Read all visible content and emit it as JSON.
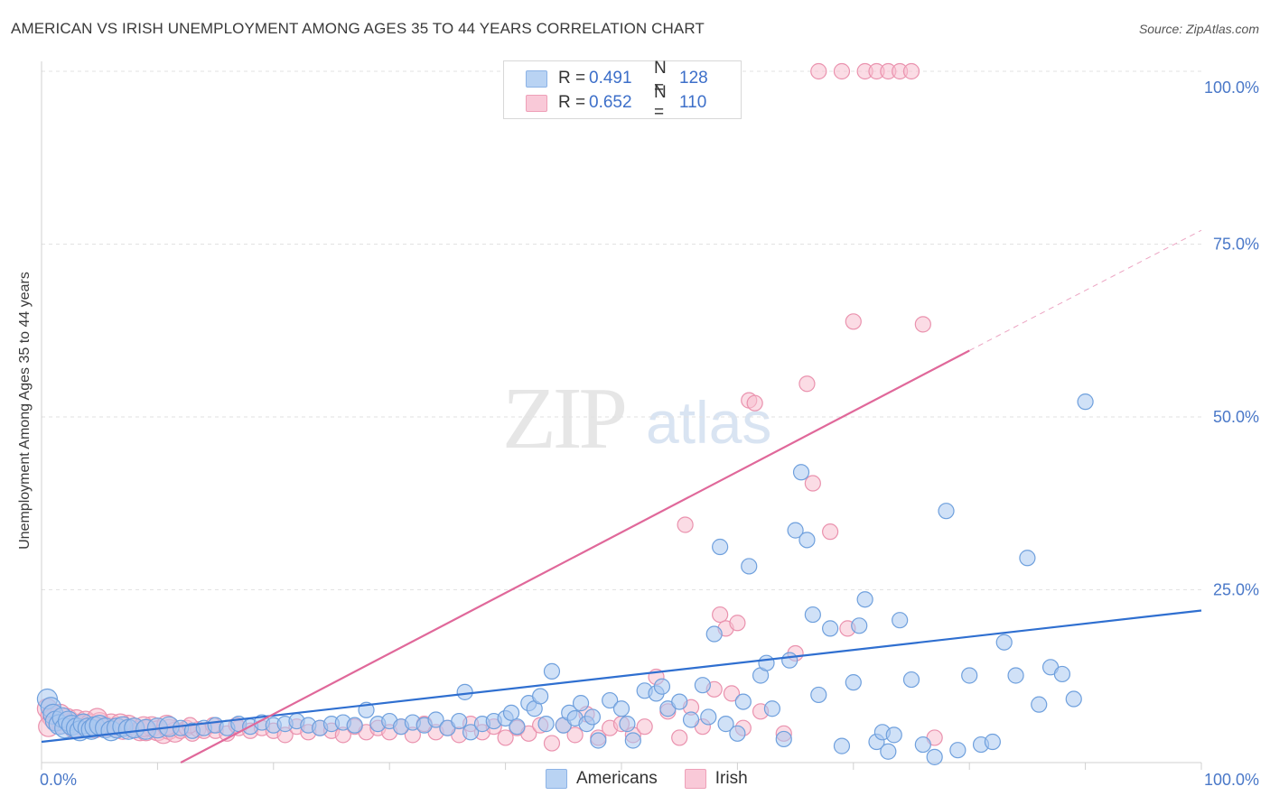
{
  "header": {
    "title": "AMERICAN VS IRISH UNEMPLOYMENT AMONG AGES 35 TO 44 YEARS CORRELATION CHART",
    "source": "Source: ZipAtlas.com"
  },
  "watermark": {
    "zip": "ZIP",
    "atlas": "atlas"
  },
  "legend": {
    "rows": [
      {
        "r_label": "R =",
        "r_value": "0.491",
        "n_label": "N =",
        "n_value": "128"
      },
      {
        "r_label": "R =",
        "r_value": "0.652",
        "n_label": "N =",
        "n_value": "110"
      }
    ]
  },
  "bottom_legend": {
    "americans": "Americans",
    "irish": "Irish"
  },
  "colors": {
    "americans_fill": "#a9c8f0",
    "americans_stroke": "#6fa0dd",
    "americans_line": "#2f6fd0",
    "irish_fill": "#f7bfd0",
    "irish_stroke": "#ea92ae",
    "irish_line": "#e0689a",
    "axis_label": "#4a78c8",
    "grid": "#e2e2e2"
  },
  "chart_data": {
    "type": "scatter",
    "title": "AMERICAN VS IRISH UNEMPLOYMENT AMONG AGES 35 TO 44 YEARS CORRELATION CHART",
    "ylabel": "Unemployment Among Ages 35 to 44 years",
    "xlabel": "",
    "xlim": [
      0,
      100
    ],
    "ylim": [
      0,
      100
    ],
    "x_tick_labels": [
      {
        "value": 0,
        "label": "0.0%"
      },
      {
        "value": 100,
        "label": "100.0%"
      }
    ],
    "y_tick_labels": [
      {
        "value": 25,
        "label": "25.0%"
      },
      {
        "value": 50,
        "label": "50.0%"
      },
      {
        "value": 75,
        "label": "75.0%"
      },
      {
        "value": 100,
        "label": "100.0%"
      }
    ],
    "grid": true,
    "legend_position": "top-center",
    "series": [
      {
        "name": "Americans",
        "R": 0.491,
        "N": 128,
        "trend": {
          "x0": 0,
          "y0": 3.0,
          "x1": 100,
          "y1": 22.0
        },
        "points": [
          [
            0.5,
            9.2
          ],
          [
            0.8,
            8.0
          ],
          [
            1.0,
            7.0
          ],
          [
            1.2,
            6.0
          ],
          [
            1.5,
            5.5
          ],
          [
            1.8,
            6.5
          ],
          [
            2.0,
            5.0
          ],
          [
            2.3,
            6.0
          ],
          [
            2.6,
            5.4
          ],
          [
            3.0,
            5.0
          ],
          [
            3.3,
            4.6
          ],
          [
            3.6,
            5.6
          ],
          [
            4.0,
            5.0
          ],
          [
            4.3,
            4.8
          ],
          [
            4.6,
            5.2
          ],
          [
            5.0,
            5.4
          ],
          [
            5.5,
            5.0
          ],
          [
            6.0,
            4.6
          ],
          [
            6.5,
            5.0
          ],
          [
            7.0,
            5.2
          ],
          [
            7.5,
            4.8
          ],
          [
            8.0,
            5.0
          ],
          [
            9.0,
            4.8
          ],
          [
            10.0,
            5.0
          ],
          [
            11.0,
            5.2
          ],
          [
            12.0,
            5.0
          ],
          [
            13.0,
            4.6
          ],
          [
            14.0,
            5.0
          ],
          [
            15.0,
            5.4
          ],
          [
            16.0,
            5.0
          ],
          [
            17.0,
            5.6
          ],
          [
            18.0,
            5.2
          ],
          [
            19.0,
            5.8
          ],
          [
            20.0,
            5.4
          ],
          [
            21.0,
            5.6
          ],
          [
            22.0,
            6.0
          ],
          [
            23.0,
            5.4
          ],
          [
            24.0,
            5.0
          ],
          [
            25.0,
            5.6
          ],
          [
            26.0,
            5.8
          ],
          [
            27.0,
            5.4
          ],
          [
            28.0,
            7.6
          ],
          [
            29.0,
            5.6
          ],
          [
            30.0,
            6.0
          ],
          [
            31.0,
            5.2
          ],
          [
            32.0,
            5.8
          ],
          [
            33.0,
            5.4
          ],
          [
            34.0,
            6.2
          ],
          [
            35.0,
            5.0
          ],
          [
            36.0,
            6.0
          ],
          [
            36.5,
            10.2
          ],
          [
            37.0,
            4.4
          ],
          [
            38.0,
            5.6
          ],
          [
            39.0,
            6.0
          ],
          [
            40.0,
            6.4
          ],
          [
            40.5,
            7.2
          ],
          [
            41.0,
            5.2
          ],
          [
            42.0,
            8.6
          ],
          [
            42.5,
            7.8
          ],
          [
            43.0,
            9.6
          ],
          [
            43.5,
            5.6
          ],
          [
            44.0,
            13.2
          ],
          [
            45.0,
            5.4
          ],
          [
            45.5,
            7.2
          ],
          [
            46.0,
            6.4
          ],
          [
            46.5,
            8.6
          ],
          [
            47.0,
            5.6
          ],
          [
            47.5,
            6.6
          ],
          [
            48.0,
            3.2
          ],
          [
            49.0,
            9.0
          ],
          [
            50.0,
            7.8
          ],
          [
            50.5,
            5.6
          ],
          [
            51.0,
            3.2
          ],
          [
            52.0,
            10.4
          ],
          [
            53.0,
            10.0
          ],
          [
            53.5,
            11.0
          ],
          [
            54.0,
            7.8
          ],
          [
            55.0,
            8.8
          ],
          [
            56.0,
            6.2
          ],
          [
            57.0,
            11.2
          ],
          [
            57.5,
            6.6
          ],
          [
            58.0,
            18.6
          ],
          [
            58.5,
            31.2
          ],
          [
            59.0,
            5.6
          ],
          [
            60.0,
            4.2
          ],
          [
            60.5,
            8.8
          ],
          [
            61.0,
            28.4
          ],
          [
            62.0,
            12.6
          ],
          [
            62.5,
            14.4
          ],
          [
            63.0,
            7.8
          ],
          [
            64.0,
            3.4
          ],
          [
            64.5,
            14.8
          ],
          [
            65.0,
            33.6
          ],
          [
            65.5,
            42.0
          ],
          [
            66.0,
            32.2
          ],
          [
            66.5,
            21.4
          ],
          [
            67.0,
            9.8
          ],
          [
            68.0,
            19.4
          ],
          [
            69.0,
            2.4
          ],
          [
            70.0,
            11.6
          ],
          [
            70.5,
            19.8
          ],
          [
            71.0,
            23.6
          ],
          [
            72.0,
            3.0
          ],
          [
            72.5,
            4.4
          ],
          [
            73.0,
            1.6
          ],
          [
            73.5,
            4.0
          ],
          [
            74.0,
            20.6
          ],
          [
            75.0,
            12.0
          ],
          [
            76.0,
            2.6
          ],
          [
            77.0,
            0.8
          ],
          [
            78.0,
            36.4
          ],
          [
            79.0,
            1.8
          ],
          [
            80.0,
            12.6
          ],
          [
            81.0,
            2.6
          ],
          [
            82.0,
            3.0
          ],
          [
            83.0,
            17.4
          ],
          [
            84.0,
            12.6
          ],
          [
            85.0,
            29.6
          ],
          [
            86.0,
            8.4
          ],
          [
            87.0,
            13.8
          ],
          [
            88.0,
            12.8
          ],
          [
            89.0,
            9.2
          ],
          [
            90.0,
            52.2
          ]
        ]
      },
      {
        "name": "Irish",
        "R": 0.652,
        "N": 110,
        "trend": {
          "x0": 12.0,
          "y0": 0,
          "x1": 80.0,
          "y1": 59.6
        },
        "trend_dashed_to": {
          "x": 100,
          "y": 77.0
        },
        "points": [
          [
            0.5,
            7.8
          ],
          [
            0.8,
            6.8
          ],
          [
            1.0,
            6.4
          ],
          [
            1.4,
            6.0
          ],
          [
            1.8,
            5.6
          ],
          [
            2.2,
            6.4
          ],
          [
            2.6,
            5.8
          ],
          [
            3.0,
            6.2
          ],
          [
            3.4,
            5.4
          ],
          [
            3.8,
            6.0
          ],
          [
            4.2,
            5.6
          ],
          [
            4.6,
            5.0
          ],
          [
            5.0,
            5.8
          ],
          [
            5.5,
            5.2
          ],
          [
            6.0,
            5.6
          ],
          [
            6.5,
            5.0
          ],
          [
            7.0,
            4.8
          ],
          [
            7.5,
            5.4
          ],
          [
            8.0,
            5.0
          ],
          [
            8.5,
            4.6
          ],
          [
            9.0,
            4.6
          ],
          [
            9.5,
            5.2
          ],
          [
            10.0,
            4.6
          ],
          [
            10.5,
            4.2
          ],
          [
            11.0,
            4.8
          ],
          [
            11.5,
            4.4
          ],
          [
            12.0,
            4.6
          ],
          [
            12.5,
            5.0
          ],
          [
            13.0,
            4.2
          ],
          [
            13.5,
            4.8
          ],
          [
            14.0,
            4.6
          ],
          [
            15.0,
            4.6
          ],
          [
            16.0,
            4.2
          ],
          [
            17.0,
            5.0
          ],
          [
            18.0,
            4.6
          ],
          [
            19.0,
            5.0
          ],
          [
            20.0,
            4.6
          ],
          [
            21.0,
            4.0
          ],
          [
            22.0,
            5.2
          ],
          [
            23.0,
            4.4
          ],
          [
            24.0,
            5.0
          ],
          [
            25.0,
            4.6
          ],
          [
            26.0,
            4.0
          ],
          [
            27.0,
            5.2
          ],
          [
            28.0,
            4.4
          ],
          [
            29.0,
            5.0
          ],
          [
            30.0,
            4.4
          ],
          [
            31.0,
            5.2
          ],
          [
            32.0,
            4.0
          ],
          [
            33.0,
            5.6
          ],
          [
            34.0,
            4.4
          ],
          [
            35.0,
            5.0
          ],
          [
            36.0,
            4.0
          ],
          [
            37.0,
            5.6
          ],
          [
            38.0,
            4.4
          ],
          [
            39.0,
            5.2
          ],
          [
            40.0,
            3.6
          ],
          [
            41.0,
            5.0
          ],
          [
            42.0,
            4.2
          ],
          [
            43.0,
            5.4
          ],
          [
            44.0,
            2.8
          ],
          [
            45.0,
            5.4
          ],
          [
            46.0,
            4.0
          ],
          [
            47.0,
            7.0
          ],
          [
            48.0,
            3.6
          ],
          [
            49.0,
            5.0
          ],
          [
            50.0,
            5.6
          ],
          [
            51.0,
            4.0
          ],
          [
            52.0,
            5.2
          ],
          [
            53.0,
            12.4
          ],
          [
            54.0,
            7.4
          ],
          [
            55.0,
            3.6
          ],
          [
            55.5,
            34.4
          ],
          [
            56.0,
            8.0
          ],
          [
            57.0,
            5.2
          ],
          [
            58.0,
            10.6
          ],
          [
            58.5,
            21.4
          ],
          [
            59.0,
            19.4
          ],
          [
            59.5,
            10.0
          ],
          [
            60.0,
            20.2
          ],
          [
            60.5,
            5.0
          ],
          [
            61.0,
            52.4
          ],
          [
            61.5,
            52.0
          ],
          [
            62.0,
            7.4
          ],
          [
            64.0,
            4.2
          ],
          [
            65.0,
            15.8
          ],
          [
            66.0,
            54.8
          ],
          [
            66.5,
            40.4
          ],
          [
            67.0,
            100
          ],
          [
            68.0,
            33.4
          ],
          [
            69.0,
            100
          ],
          [
            69.5,
            19.4
          ],
          [
            70.0,
            63.8
          ],
          [
            71.0,
            100
          ],
          [
            72.0,
            100
          ],
          [
            73.0,
            100
          ],
          [
            74.0,
            100
          ],
          [
            75.0,
            100
          ],
          [
            76.0,
            63.4
          ],
          [
            77.0,
            3.6
          ],
          [
            0.6,
            5.2
          ],
          [
            1.6,
            7.0
          ],
          [
            2.8,
            5.0
          ],
          [
            4.8,
            6.4
          ],
          [
            6.8,
            5.6
          ],
          [
            8.8,
            5.2
          ],
          [
            10.8,
            5.4
          ],
          [
            12.8,
            5.4
          ],
          [
            14.8,
            5.4
          ],
          [
            16.8,
            5.4
          ]
        ]
      }
    ]
  }
}
